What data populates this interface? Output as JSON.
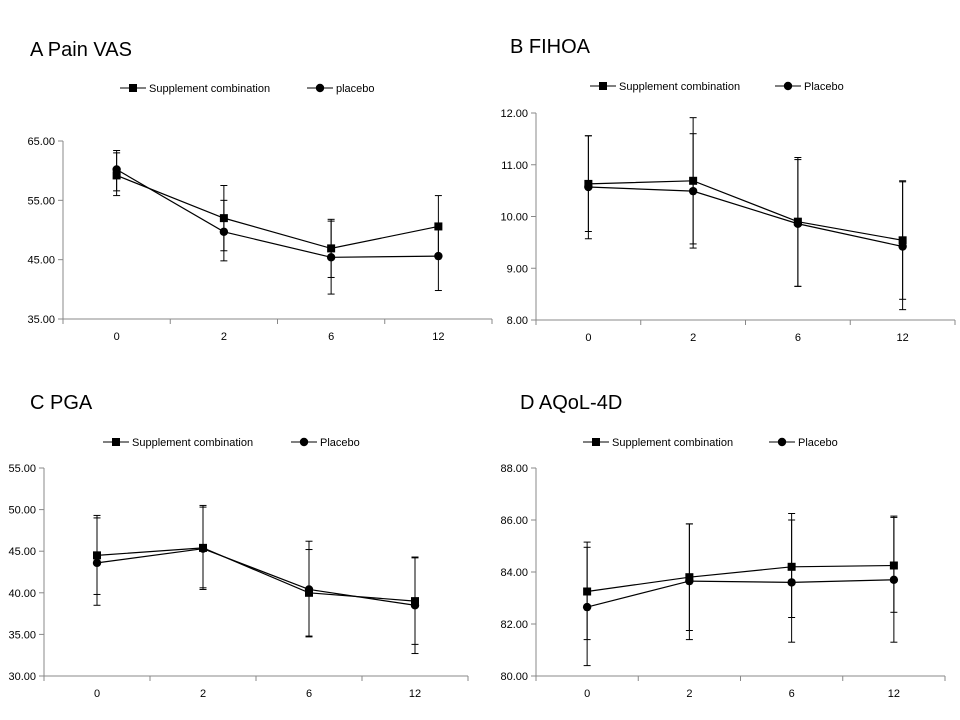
{
  "chart_data": [
    {
      "type": "line",
      "title": "A Pain VAS",
      "xlabel": "",
      "ylabel": "",
      "categories": [
        "0",
        "2",
        "6",
        "12"
      ],
      "ylim": [
        35,
        65
      ],
      "yticks": [
        "35.00",
        "45.00",
        "55.00",
        "65.00"
      ],
      "legend_position": "top",
      "series": [
        {
          "name": "Supplement combination",
          "marker": "square",
          "values": [
            59.2,
            52.0,
            46.9,
            50.6
          ],
          "err_low": [
            56.6,
            46.5,
            42.0,
            45.5
          ],
          "err_high": [
            63.0,
            57.5,
            51.5,
            55.8
          ]
        },
        {
          "name": "placebo",
          "marker": "circle",
          "values": [
            60.2,
            49.7,
            45.4,
            45.6
          ],
          "err_low": [
            55.8,
            44.8,
            39.2,
            39.8
          ],
          "err_high": [
            63.4,
            55.0,
            51.8,
            50.5
          ]
        }
      ]
    },
    {
      "type": "line",
      "title": "B FIHOA",
      "xlabel": "",
      "ylabel": "",
      "categories": [
        "0",
        "2",
        "6",
        "12"
      ],
      "ylim": [
        8,
        12
      ],
      "yticks": [
        "8.00",
        "9.00",
        "10.00",
        "11.00",
        "12.00"
      ],
      "legend_position": "top",
      "series": [
        {
          "name": "Supplement combination",
          "marker": "square",
          "values": [
            10.63,
            10.69,
            9.9,
            9.54
          ],
          "err_low": [
            9.71,
            9.47,
            8.65,
            8.4
          ],
          "err_high": [
            11.56,
            11.91,
            11.14,
            10.69
          ]
        },
        {
          "name": "Placebo",
          "marker": "circle",
          "values": [
            10.57,
            10.49,
            9.86,
            9.42
          ],
          "err_low": [
            9.57,
            9.39,
            8.65,
            8.2
          ],
          "err_high": [
            11.56,
            11.6,
            11.1,
            10.67
          ]
        }
      ]
    },
    {
      "type": "line",
      "title": "C PGA",
      "xlabel": "",
      "ylabel": "",
      "categories": [
        "0",
        "2",
        "6",
        "12"
      ],
      "ylim": [
        30,
        55
      ],
      "yticks": [
        "30.00",
        "35.00",
        "40.00",
        "45.00",
        "50.00",
        "55.00"
      ],
      "legend_position": "top",
      "series": [
        {
          "name": "Supplement combination",
          "marker": "square",
          "values": [
            44.5,
            45.4,
            40.0,
            39.0
          ],
          "err_low": [
            39.8,
            40.6,
            34.8,
            33.8
          ],
          "err_high": [
            49.3,
            50.5,
            46.2,
            44.3
          ]
        },
        {
          "name": "Placebo",
          "marker": "circle",
          "values": [
            43.6,
            45.3,
            40.4,
            38.5
          ],
          "err_low": [
            38.5,
            40.4,
            34.7,
            32.7
          ],
          "err_high": [
            49.0,
            50.3,
            45.2,
            44.2
          ]
        }
      ]
    },
    {
      "type": "line",
      "title": "D AQoL-4D",
      "xlabel": "",
      "ylabel": "",
      "categories": [
        "0",
        "2",
        "6",
        "12"
      ],
      "ylim": [
        80,
        88
      ],
      "yticks": [
        "80.00",
        "82.00",
        "84.00",
        "86.00",
        "88.00"
      ],
      "legend_position": "top",
      "series": [
        {
          "name": "Supplement combination",
          "marker": "square",
          "values": [
            83.25,
            83.8,
            84.2,
            84.25
          ],
          "err_low": [
            81.4,
            81.75,
            82.25,
            82.45
          ],
          "err_high": [
            85.15,
            85.85,
            86.25,
            86.15
          ]
        },
        {
          "name": "Placebo",
          "marker": "circle",
          "values": [
            82.65,
            83.65,
            83.6,
            83.7
          ],
          "err_low": [
            80.4,
            81.4,
            81.3,
            81.3
          ],
          "err_high": [
            84.95,
            85.85,
            86.0,
            86.1
          ]
        }
      ]
    }
  ]
}
